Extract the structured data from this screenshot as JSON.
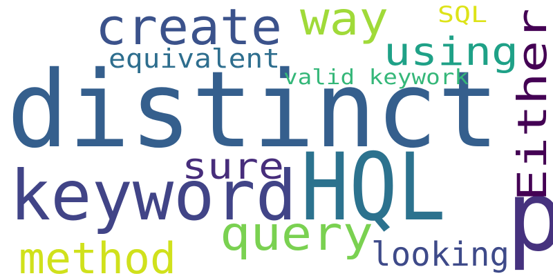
{
  "words": [
    {
      "text": "distinct",
      "color": "#355f8d"
    },
    {
      "text": "HQL",
      "color": "#2c728e"
    },
    {
      "text": "keyword",
      "color": "#414487"
    },
    {
      "text": "p",
      "color": "#46327e"
    },
    {
      "text": "create",
      "color": "#3b528b"
    },
    {
      "text": "Either",
      "color": "#440154"
    },
    {
      "text": "query",
      "color": "#7ad151"
    },
    {
      "text": "way",
      "color": "#a0da39"
    },
    {
      "text": "using",
      "color": "#1fa187"
    },
    {
      "text": "method",
      "color": "#d0e11c"
    },
    {
      "text": "sure",
      "color": "#472d7b"
    },
    {
      "text": "looking",
      "color": "#3e4a89"
    },
    {
      "text": "equivalent",
      "color": "#2e6e8e"
    },
    {
      "text": "valid keywork",
      "color": "#35b779"
    },
    {
      "text": "SQL",
      "color": "#dde318"
    }
  ]
}
